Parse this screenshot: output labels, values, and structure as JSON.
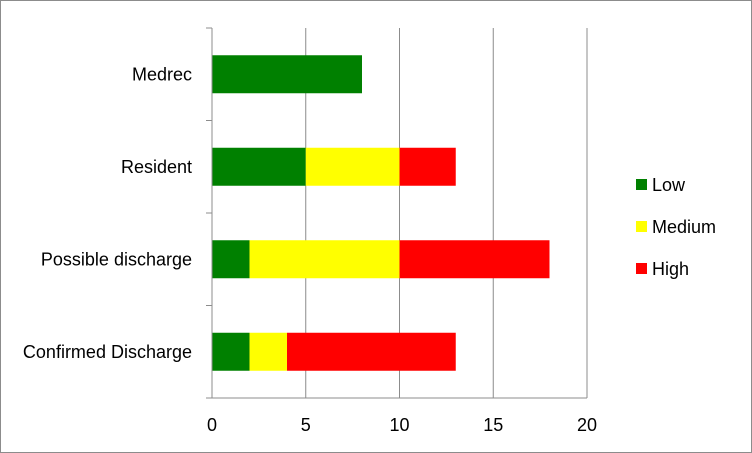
{
  "chart_data": {
    "type": "bar",
    "orientation": "horizontal",
    "stacked": true,
    "categories": [
      "Medrec",
      "Resident",
      "Possible discharge",
      "Confirmed Discharge"
    ],
    "series": [
      {
        "name": "Low",
        "color": "#008000",
        "values": [
          8,
          5,
          2,
          2
        ]
      },
      {
        "name": "Medium",
        "color": "#ffff00",
        "values": [
          0,
          5,
          8,
          2
        ]
      },
      {
        "name": "High",
        "color": "#ff0000",
        "values": [
          0,
          3,
          8,
          9
        ]
      }
    ],
    "x_ticks": [
      "0",
      "5",
      "10",
      "15",
      "20"
    ],
    "xlim": [
      0,
      20
    ],
    "grid": "vertical",
    "legend_position": "right",
    "title": "",
    "xlabel": "",
    "ylabel": ""
  }
}
